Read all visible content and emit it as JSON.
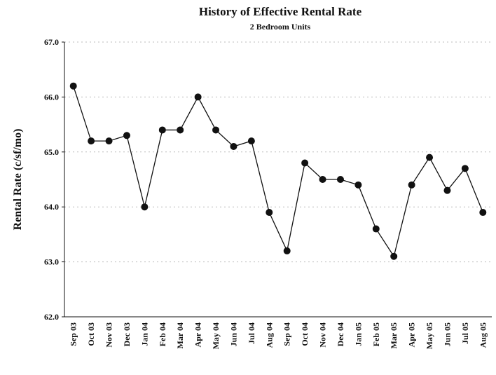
{
  "chart_data": {
    "type": "line",
    "title": "History of Effective Rental Rate",
    "subtitle": "2 Bedroom Units",
    "y_label": "Rental Rate (c/sf/mo)",
    "categories": [
      "Sep 03",
      "Oct 03",
      "Nov 03",
      "Dec 03",
      "Jan 04",
      "Feb 04",
      "Mar 04",
      "Apr 04",
      "May 04",
      "Jun 04",
      "Jul 04",
      "Aug 04",
      "Sep 04",
      "Oct 04",
      "Nov 04",
      "Dec 04",
      "Jan 05",
      "Feb 05",
      "Mar 05",
      "Apr 05",
      "May 05",
      "Jun 05",
      "Jul 05",
      "Aug 05"
    ],
    "values": [
      66.2,
      65.2,
      65.2,
      65.3,
      64.0,
      65.4,
      65.4,
      66.0,
      65.4,
      65.1,
      65.2,
      63.9,
      63.2,
      64.8,
      64.5,
      64.5,
      64.4,
      63.6,
      63.1,
      64.4,
      64.9,
      64.3,
      64.7,
      63.9
    ],
    "color": "#111111",
    "ylim": [
      62,
      67
    ],
    "yticks": [
      {
        "value": 62,
        "label": "62.0"
      },
      {
        "value": 63,
        "label": "63.0"
      },
      {
        "value": 64,
        "label": "64.0"
      },
      {
        "value": 65,
        "label": "65.0"
      },
      {
        "value": 66,
        "label": "66.0"
      },
      {
        "value": 67,
        "label": "67.0"
      }
    ],
    "grid": true
  }
}
